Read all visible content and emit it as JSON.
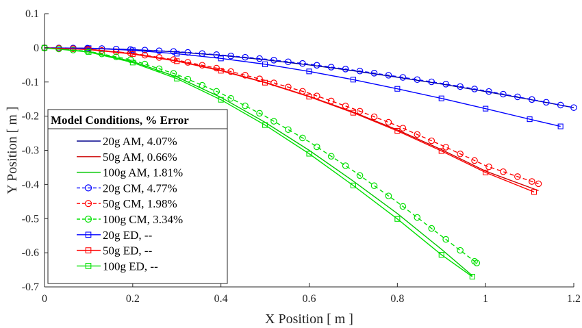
{
  "chart_data": {
    "type": "line",
    "xlabel": "X Position [ m ]",
    "ylabel": "Y Position [ m ]",
    "xlim": [
      0,
      1.2
    ],
    "ylim": [
      -0.7,
      0.1
    ],
    "x_ticks": [
      "0",
      "0.2",
      "0.4",
      "0.6",
      "0.8",
      "1",
      "1.2"
    ],
    "y_ticks": [
      "0.1",
      "0",
      "-0.1",
      "-0.2",
      "-0.3",
      "-0.4",
      "-0.5",
      "-0.6",
      "-0.7"
    ],
    "grid": false,
    "legend": {
      "title": "Model Conditions, % Error",
      "placement": "left"
    },
    "series": [
      {
        "name": "20g AM, 4.07%",
        "color": "#00008B",
        "dash": "solid",
        "marker": "none",
        "x": [
          0,
          0.1,
          0.2,
          0.3,
          0.4,
          0.5,
          0.6,
          0.7,
          0.8,
          0.9,
          1.0,
          1.1,
          1.2
        ],
        "y": [
          0,
          -0.001,
          -0.005,
          -0.012,
          -0.022,
          -0.035,
          -0.05,
          -0.067,
          -0.086,
          -0.106,
          -0.128,
          -0.151,
          -0.175
        ]
      },
      {
        "name": "50g AM, 0.66%",
        "color": "#CC0000",
        "dash": "solid",
        "marker": "none",
        "x": [
          0,
          0.1,
          0.2,
          0.3,
          0.4,
          0.5,
          0.6,
          0.7,
          0.8,
          0.9,
          1.0,
          1.12
        ],
        "y": [
          0,
          -0.004,
          -0.017,
          -0.038,
          -0.066,
          -0.101,
          -0.142,
          -0.188,
          -0.24,
          -0.298,
          -0.361,
          -0.418
        ]
      },
      {
        "name": "100g AM, 1.81%",
        "color": "#00C800",
        "dash": "solid",
        "marker": "none",
        "x": [
          0,
          0.1,
          0.2,
          0.3,
          0.4,
          0.5,
          0.6,
          0.7,
          0.8,
          0.9,
          0.97
        ],
        "y": [
          0,
          -0.011,
          -0.04,
          -0.085,
          -0.145,
          -0.218,
          -0.3,
          -0.39,
          -0.485,
          -0.59,
          -0.667
        ]
      },
      {
        "name": "20g CM, 4.77%",
        "color": "#0000FF",
        "dash": "dashed",
        "marker": "circle",
        "x": [
          0,
          0.1,
          0.2,
          0.3,
          0.4,
          0.5,
          0.6,
          0.7,
          0.8,
          0.9,
          1.0,
          1.1,
          1.2
        ],
        "y": [
          0,
          -0.001,
          -0.005,
          -0.011,
          -0.021,
          -0.033,
          -0.048,
          -0.065,
          -0.084,
          -0.104,
          -0.126,
          -0.15,
          -0.175
        ]
      },
      {
        "name": "50g CM, 1.98%",
        "color": "#FF0000",
        "dash": "dashed",
        "marker": "circle",
        "x": [
          0,
          0.1,
          0.2,
          0.3,
          0.4,
          0.5,
          0.6,
          0.7,
          0.8,
          0.9,
          1.0,
          1.12
        ],
        "y": [
          0,
          -0.004,
          -0.016,
          -0.036,
          -0.062,
          -0.095,
          -0.133,
          -0.178,
          -0.228,
          -0.285,
          -0.345,
          -0.398
        ]
      },
      {
        "name": "100g CM, 3.34%",
        "color": "#00E000",
        "dash": "dashed",
        "marker": "circle",
        "x": [
          0,
          0.1,
          0.2,
          0.3,
          0.4,
          0.5,
          0.6,
          0.7,
          0.8,
          0.9,
          0.98
        ],
        "y": [
          0,
          -0.01,
          -0.036,
          -0.078,
          -0.133,
          -0.2,
          -0.275,
          -0.36,
          -0.452,
          -0.551,
          -0.63
        ]
      },
      {
        "name": "20g ED, --",
        "color": "#0000FF",
        "dash": "solid",
        "marker": "square",
        "x": [
          0,
          0.1,
          0.2,
          0.3,
          0.4,
          0.5,
          0.6,
          0.7,
          0.8,
          0.9,
          1.0,
          1.1,
          1.17
        ],
        "y": [
          0,
          -0.001,
          -0.007,
          -0.017,
          -0.031,
          -0.048,
          -0.069,
          -0.093,
          -0.12,
          -0.148,
          -0.178,
          -0.209,
          -0.23
        ]
      },
      {
        "name": "50g ED, --",
        "color": "#FF0000",
        "dash": "solid",
        "marker": "square",
        "x": [
          0,
          0.1,
          0.2,
          0.3,
          0.4,
          0.5,
          0.6,
          0.7,
          0.8,
          0.9,
          1.0,
          1.11
        ],
        "y": [
          0,
          -0.005,
          -0.018,
          -0.039,
          -0.067,
          -0.102,
          -0.143,
          -0.19,
          -0.243,
          -0.302,
          -0.365,
          -0.422
        ]
      },
      {
        "name": "100g ED, --",
        "color": "#00E000",
        "dash": "solid",
        "marker": "square",
        "x": [
          0,
          0.1,
          0.2,
          0.3,
          0.4,
          0.5,
          0.6,
          0.7,
          0.8,
          0.9,
          0.97
        ],
        "y": [
          0,
          -0.012,
          -0.043,
          -0.09,
          -0.152,
          -0.226,
          -0.31,
          -0.403,
          -0.501,
          -0.606,
          -0.67
        ]
      }
    ]
  }
}
